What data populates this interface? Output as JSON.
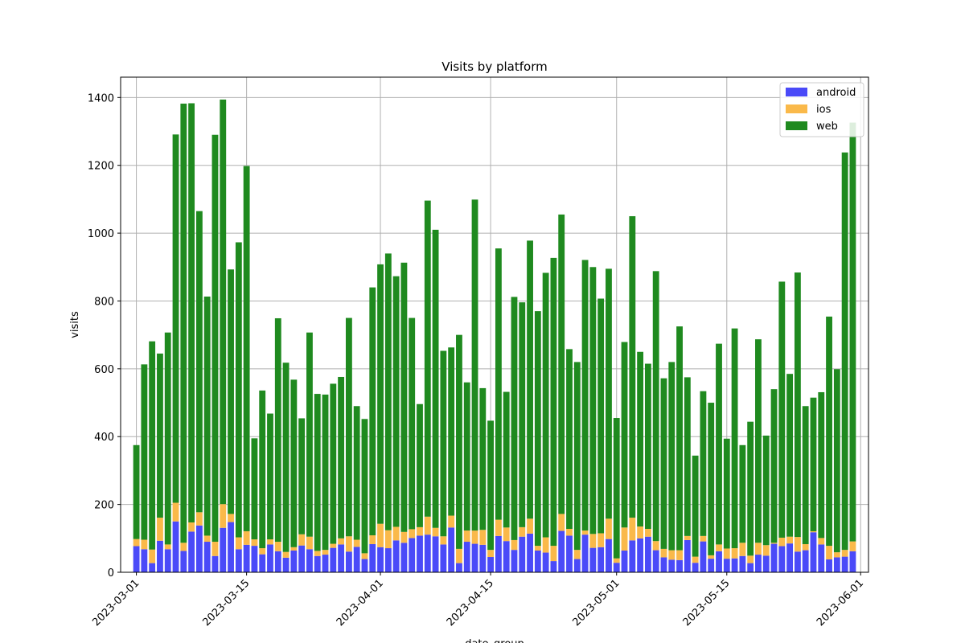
{
  "chart_data": {
    "type": "bar",
    "stacked": true,
    "title": "Visits by platform",
    "xlabel": "date_group",
    "ylabel": "visits",
    "x_start": "2023-03-01",
    "x_end": "2023-05-31",
    "xlim": [
      "2023-02-27",
      "2023-06-02"
    ],
    "ylim": [
      0,
      1460
    ],
    "x_ticks": [
      "2023-03-01",
      "2023-03-15",
      "2023-04-01",
      "2023-04-15",
      "2023-05-01",
      "2023-05-15",
      "2023-06-01"
    ],
    "y_ticks": [
      0,
      200,
      400,
      600,
      800,
      1000,
      1200,
      1400
    ],
    "grid": true,
    "legend_position": "top-right",
    "series": [
      {
        "name": "android",
        "color": "#4a4af8",
        "values": [
          77,
          68,
          27,
          93,
          68,
          150,
          63,
          120,
          138,
          90,
          48,
          131,
          148,
          68,
          81,
          78,
          53,
          82,
          62,
          43,
          64,
          79,
          68,
          48,
          52,
          72,
          82,
          61,
          75,
          39,
          83,
          74,
          71,
          94,
          87,
          101,
          108,
          111,
          106,
          82,
          132,
          27,
          90,
          84,
          81,
          45,
          107,
          92,
          66,
          105,
          114,
          64,
          58,
          33,
          122,
          108,
          39,
          111,
          72,
          74,
          98,
          28,
          64,
          94,
          100,
          105,
          65,
          44,
          37,
          36,
          95,
          28,
          91,
          40,
          62,
          40,
          41,
          48,
          27,
          52,
          49,
          84,
          77,
          85,
          61,
          65,
          118,
          82,
          38,
          44,
          46,
          62
        ],
        "visible_tick_labels": [
          "2023-03-01",
          "2023-03-15",
          "2023-04-01",
          "2023-04-15",
          "2023-05-01",
          "2023-05-15",
          "2023-06-01"
        ]
      },
      {
        "name": "ios",
        "color": "#fab94a",
        "values": [
          21,
          28,
          40,
          68,
          14,
          55,
          24,
          27,
          39,
          18,
          42,
          70,
          24,
          35,
          40,
          19,
          18,
          15,
          28,
          17,
          10,
          33,
          37,
          15,
          14,
          12,
          18,
          45,
          21,
          17,
          26,
          69,
          53,
          40,
          32,
          26,
          25,
          53,
          25,
          24,
          35,
          42,
          33,
          39,
          44,
          21,
          48,
          40,
          29,
          28,
          44,
          14,
          45,
          45,
          50,
          20,
          27,
          12,
          41,
          41,
          60,
          13,
          68,
          67,
          35,
          23,
          27,
          25,
          28,
          29,
          12,
          18,
          16,
          10,
          20,
          30,
          30,
          39,
          22,
          35,
          31,
          3,
          25,
          20,
          43,
          18,
          3,
          19,
          40,
          15,
          20,
          29
        ]
      },
      {
        "name": "web",
        "color": "#1f8a1f",
        "values": [
          277,
          517,
          614,
          484,
          625,
          1086,
          1295,
          1236,
          888,
          705,
          1200,
          1193,
          721,
          870,
          1077,
          298,
          465,
          371,
          659,
          558,
          494,
          342,
          602,
          463,
          458,
          472,
          476,
          644,
          394,
          396,
          731,
          765,
          816,
          739,
          794,
          623,
          363,
          932,
          879,
          547,
          496,
          631,
          437,
          976,
          418,
          381,
          800,
          400,
          717,
          663,
          820,
          692,
          780,
          849,
          883,
          530,
          554,
          798,
          787,
          692,
          737,
          414,
          547,
          889,
          515,
          487,
          796,
          503,
          555,
          660,
          468,
          298,
          427,
          450,
          592,
          324,
          648,
          288,
          395,
          600,
          323,
          453,
          755,
          480,
          780,
          407,
          394,
          430,
          676,
          540,
          1172,
          1235
        ]
      }
    ],
    "legend": [
      {
        "name": "android",
        "color": "#4a4af8"
      },
      {
        "name": "ios",
        "color": "#fab94a"
      },
      {
        "name": "web",
        "color": "#1f8a1f"
      }
    ]
  }
}
